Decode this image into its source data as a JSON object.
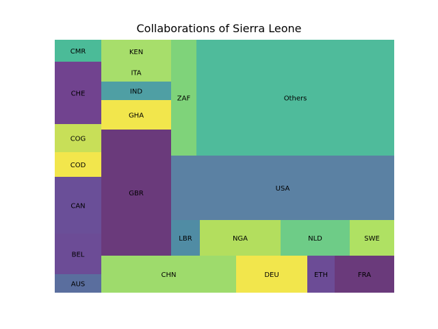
{
  "chart_data": {
    "type": "treemap",
    "title": "Collaborations of Sierra Leone",
    "cells": [
      {
        "label": "AUS",
        "value": 26,
        "color": "#5a6e9e"
      },
      {
        "label": "BEL",
        "value": 40,
        "color": "#6c4c96"
      },
      {
        "label": "CAN",
        "value": 56,
        "color": "#6a4f98"
      },
      {
        "label": "COD",
        "value": 24,
        "color": "#f2e64c"
      },
      {
        "label": "COG",
        "value": 27,
        "color": "#c8df58"
      },
      {
        "label": "CHE",
        "value": 62,
        "color": "#71438f"
      },
      {
        "label": "CMR",
        "value": 21,
        "color": "#4bbb98"
      },
      {
        "label": "GBR",
        "value": 185,
        "color": "#6a3a7b"
      },
      {
        "label": "GHA",
        "value": 43,
        "color": "#f2e64c"
      },
      {
        "label": "IND",
        "value": 27,
        "color": "#4f9fa4"
      },
      {
        "label": "ITA",
        "value": 27,
        "color": "#a7de6b"
      },
      {
        "label": "KEN",
        "value": 34,
        "color": "#a7de6b"
      },
      {
        "label": "ZAF",
        "value": 61,
        "color": "#7fd37a"
      },
      {
        "label": "Others",
        "value": 420,
        "color": "#4fbb9b"
      },
      {
        "label": "USA",
        "value": 304,
        "color": "#5b81a3"
      },
      {
        "label": "LBR",
        "value": 43,
        "color": "#508ca4"
      },
      {
        "label": "NGA",
        "value": 120,
        "color": "#b3de5e"
      },
      {
        "label": "NLD",
        "value": 103,
        "color": "#6ecc87"
      },
      {
        "label": "SWE",
        "value": 67,
        "color": "#afe163"
      },
      {
        "label": "CHN",
        "value": 206,
        "color": "#9edb6c"
      },
      {
        "label": "DEU",
        "value": 109,
        "color": "#f2e64c"
      },
      {
        "label": "ETH",
        "value": 42,
        "color": "#6c4c96"
      },
      {
        "label": "FRA",
        "value": 91,
        "color": "#6a3a7b"
      }
    ]
  }
}
